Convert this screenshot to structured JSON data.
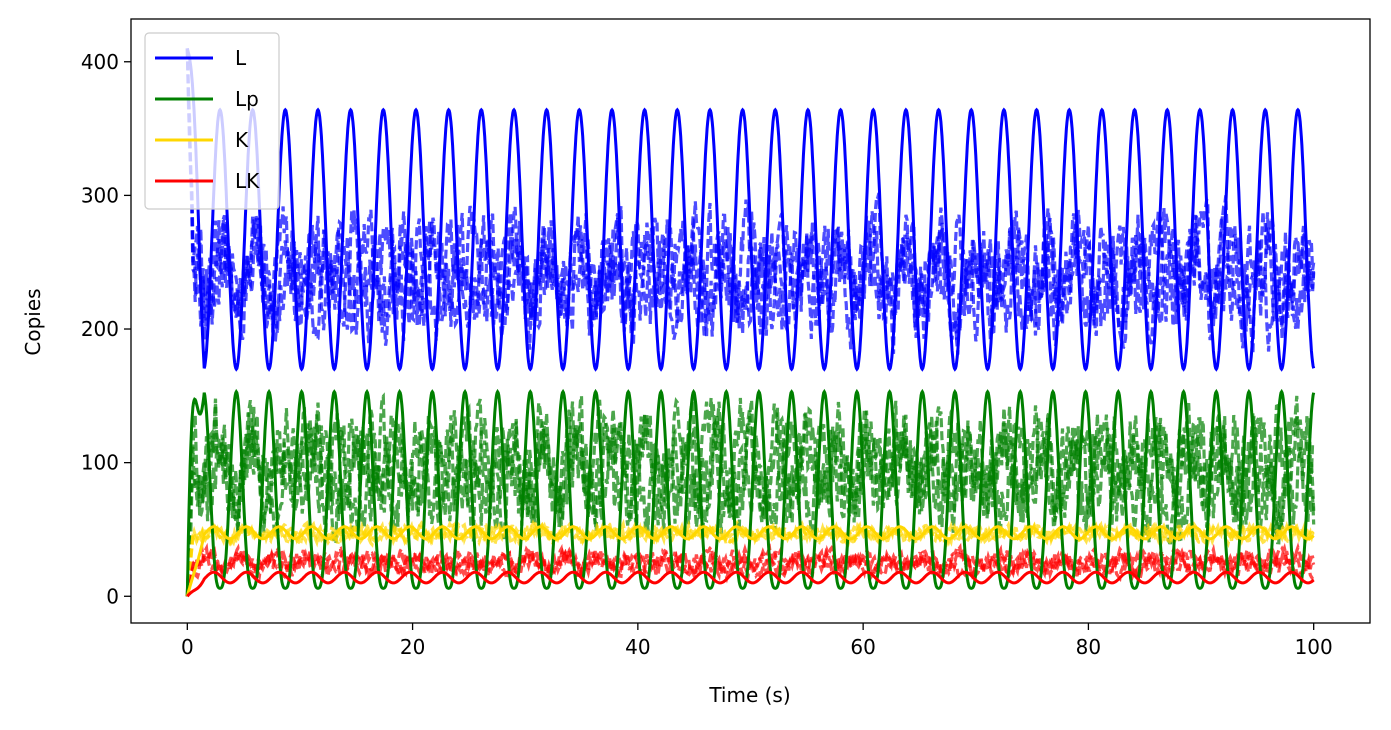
{
  "chart_data": {
    "type": "line",
    "xlabel": "Time (s)",
    "ylabel": "Copies",
    "xlim": [
      -5,
      105
    ],
    "ylim": [
      -20,
      432
    ],
    "xticks": [
      0,
      20,
      40,
      60,
      80,
      100
    ],
    "yticks": [
      0,
      100,
      200,
      300,
      400
    ],
    "grid": false,
    "legend_position": "top-left",
    "period": 2.9,
    "series": [
      {
        "name": "L",
        "color": "#0000ff",
        "deterministic": {
          "min": 170,
          "max": 364
        },
        "stochastic": {
          "mean": 240,
          "spread": 30,
          "min": 165,
          "max": 310
        }
      },
      {
        "name": "Lp",
        "color": "#008000",
        "deterministic": {
          "min": 6,
          "max": 153
        },
        "stochastic": {
          "mean": 95,
          "spread": 30,
          "min": 40,
          "max": 155
        }
      },
      {
        "name": "K",
        "color": "#ffd700",
        "deterministic": {
          "min": 43,
          "max": 52
        },
        "stochastic": {
          "mean": 47,
          "spread": 4,
          "min": 38,
          "max": 56
        }
      },
      {
        "name": "LK",
        "color": "#ff0000",
        "deterministic": {
          "min": 10,
          "max": 18
        },
        "stochastic": {
          "mean": 25,
          "spread": 6,
          "min": 12,
          "max": 38
        }
      }
    ]
  }
}
